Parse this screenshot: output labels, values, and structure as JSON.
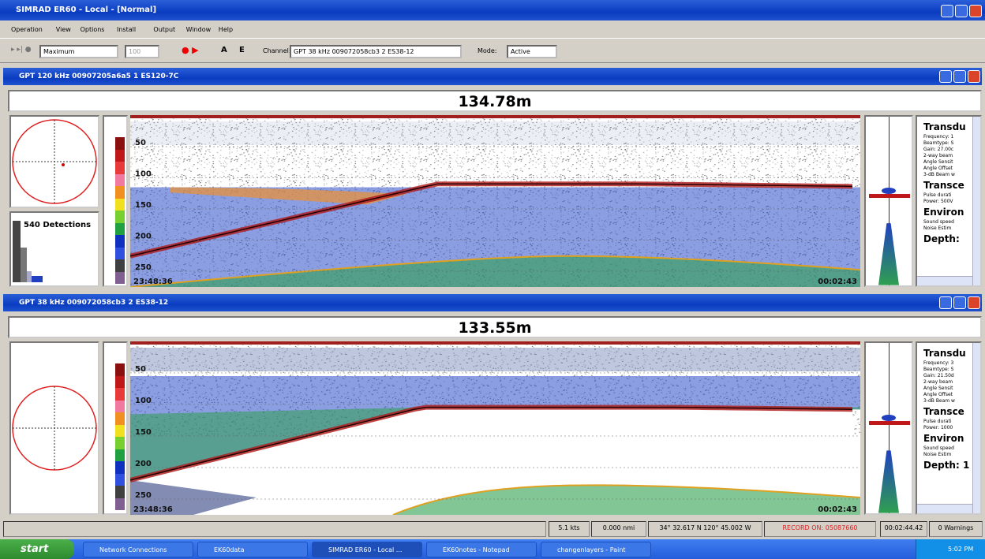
{
  "window": {
    "title": "SIMRAD ER60 - Local - [Normal]"
  },
  "menu": [
    "Operation",
    "View",
    "Options",
    "Install",
    "Output",
    "Window",
    "Help"
  ],
  "toolbar": {
    "range": "Maximum",
    "value": "100",
    "buttons": [
      "A",
      "E"
    ],
    "channel_label": "Channel:",
    "channel": "GPT  38 kHz 009072058cb3 2 ES38-12",
    "mode_label": "Mode:",
    "mode": "Active"
  },
  "panels": [
    {
      "title": "GPT 120 kHz 00907205a6a5 1 ES120-7C",
      "depth": "134.78m",
      "detections": "540 Detections",
      "depth_ticks": [
        "50",
        "100",
        "150",
        "200",
        "250"
      ],
      "start_time": "23:48:36",
      "end_time": "00:02:43",
      "info": [
        {
          "heading": "Transdu",
          "lines": [
            "Frequency: 1",
            "Beamtype: S",
            "Gain: 27.00c",
            "2-way beam",
            "Angle Sensit",
            "Angle Offset",
            "3-dB Beam w"
          ]
        },
        {
          "heading": "Transce",
          "lines": [
            "Pulse durati",
            "Power: 500V"
          ]
        },
        {
          "heading": "Environ",
          "lines": [
            "Sound speed",
            "Noise Estim"
          ]
        },
        {
          "heading": "Depth: ",
          "lines": []
        }
      ]
    },
    {
      "title": "GPT  38 kHz 009072058cb3 2 ES38-12",
      "depth": "133.55m",
      "depth_ticks": [
        "50",
        "100",
        "150",
        "200",
        "250"
      ],
      "start_time": "23:48:36",
      "end_time": "00:02:43",
      "info": [
        {
          "heading": "Transdu",
          "lines": [
            "Frequency: 3",
            "Beamtype: S",
            "Gain: 21.50d",
            "2-way beam",
            "Angle Sensit",
            "Angle Offset",
            "3-dB Beam w"
          ]
        },
        {
          "heading": "Transce",
          "lines": [
            "Pulse durati",
            "Power: 1000"
          ]
        },
        {
          "heading": "Environ",
          "lines": [
            "Sound speed",
            "Noise Estim"
          ]
        },
        {
          "heading": "Depth: 1",
          "lines": []
        }
      ]
    }
  ],
  "status": [
    "5.1 kts",
    "0.000 nmi",
    "34° 32.617 N 120° 45.002 W",
    "RECORD ON: 05087660",
    "00:02:44.42",
    "0 Warnings"
  ],
  "taskbar": {
    "start": "start",
    "items": [
      "Network Connections",
      "EK60data",
      "SIMRAD ER60 - Local ...",
      "EK60notes - Notepad",
      "changenlayers - Paint"
    ],
    "clock": "5:02 PM"
  }
}
